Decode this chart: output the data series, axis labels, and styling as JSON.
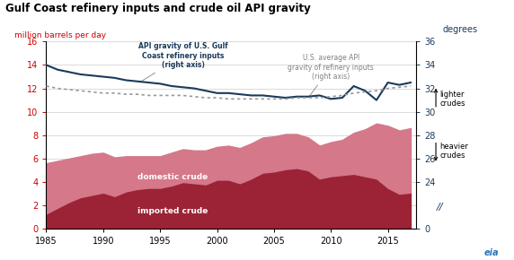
{
  "title": "Gulf Coast refinery inputs and crude oil API gravity",
  "ylabel_left": "million barrels per day",
  "ylabel_right": "degrees",
  "background_color": "#ffffff",
  "years": [
    1985,
    1986,
    1987,
    1988,
    1989,
    1990,
    1991,
    1992,
    1993,
    1994,
    1995,
    1996,
    1997,
    1998,
    1999,
    2000,
    2001,
    2002,
    2003,
    2004,
    2005,
    2006,
    2007,
    2008,
    2009,
    2010,
    2011,
    2012,
    2013,
    2014,
    2015,
    2016,
    2017
  ],
  "imported_crude": [
    1.3,
    1.8,
    2.3,
    2.7,
    2.9,
    3.1,
    2.8,
    3.2,
    3.4,
    3.5,
    3.5,
    3.7,
    4.0,
    3.9,
    3.8,
    4.2,
    4.2,
    3.9,
    4.3,
    4.8,
    4.9,
    5.1,
    5.2,
    5.0,
    4.3,
    4.5,
    4.6,
    4.7,
    4.5,
    4.3,
    3.5,
    3.0,
    3.1
  ],
  "domestic_crude": [
    4.3,
    4.0,
    3.7,
    3.5,
    3.5,
    3.4,
    3.3,
    3.0,
    2.8,
    2.7,
    2.7,
    2.8,
    2.8,
    2.8,
    2.9,
    2.8,
    2.9,
    3.0,
    3.0,
    3.0,
    3.0,
    3.0,
    2.9,
    2.8,
    2.8,
    2.9,
    3.0,
    3.5,
    4.0,
    4.7,
    5.3,
    5.4,
    5.5
  ],
  "gulf_api_left": [
    14.0,
    13.6,
    13.4,
    13.2,
    13.1,
    13.0,
    12.9,
    12.7,
    12.6,
    12.5,
    12.4,
    12.2,
    12.1,
    12.0,
    11.8,
    11.6,
    11.6,
    11.5,
    11.4,
    11.4,
    11.3,
    11.2,
    11.3,
    11.3,
    11.4,
    11.1,
    11.2,
    12.2,
    11.8,
    11.0,
    12.5,
    12.3,
    12.5
  ],
  "us_avg_api_left": [
    12.2,
    12.0,
    11.9,
    11.8,
    11.7,
    11.6,
    11.6,
    11.5,
    11.5,
    11.4,
    11.4,
    11.4,
    11.4,
    11.3,
    11.2,
    11.2,
    11.1,
    11.1,
    11.1,
    11.1,
    11.1,
    11.1,
    11.2,
    11.2,
    11.2,
    11.3,
    11.4,
    11.6,
    11.7,
    11.8,
    12.0,
    12.1,
    12.2
  ],
  "imported_color": "#9b2335",
  "domestic_color": "#d4788a",
  "gulf_api_color": "#1a3a5c",
  "us_avg_api_color": "#999999",
  "grid_color": "#cccccc",
  "yticks_left": [
    0,
    2,
    4,
    6,
    8,
    10,
    12,
    14,
    16
  ],
  "yticks_right_vals": [
    0,
    24,
    26,
    28,
    30,
    32,
    34,
    36
  ],
  "yticks_right_labels": [
    "0",
    "24",
    "26",
    "28",
    "30",
    "32",
    "34",
    "36"
  ],
  "xticks": [
    1985,
    1990,
    1995,
    2000,
    2005,
    2010,
    2015
  ],
  "xlim": [
    1985,
    2017.5
  ],
  "ylim": [
    0,
    16
  ]
}
